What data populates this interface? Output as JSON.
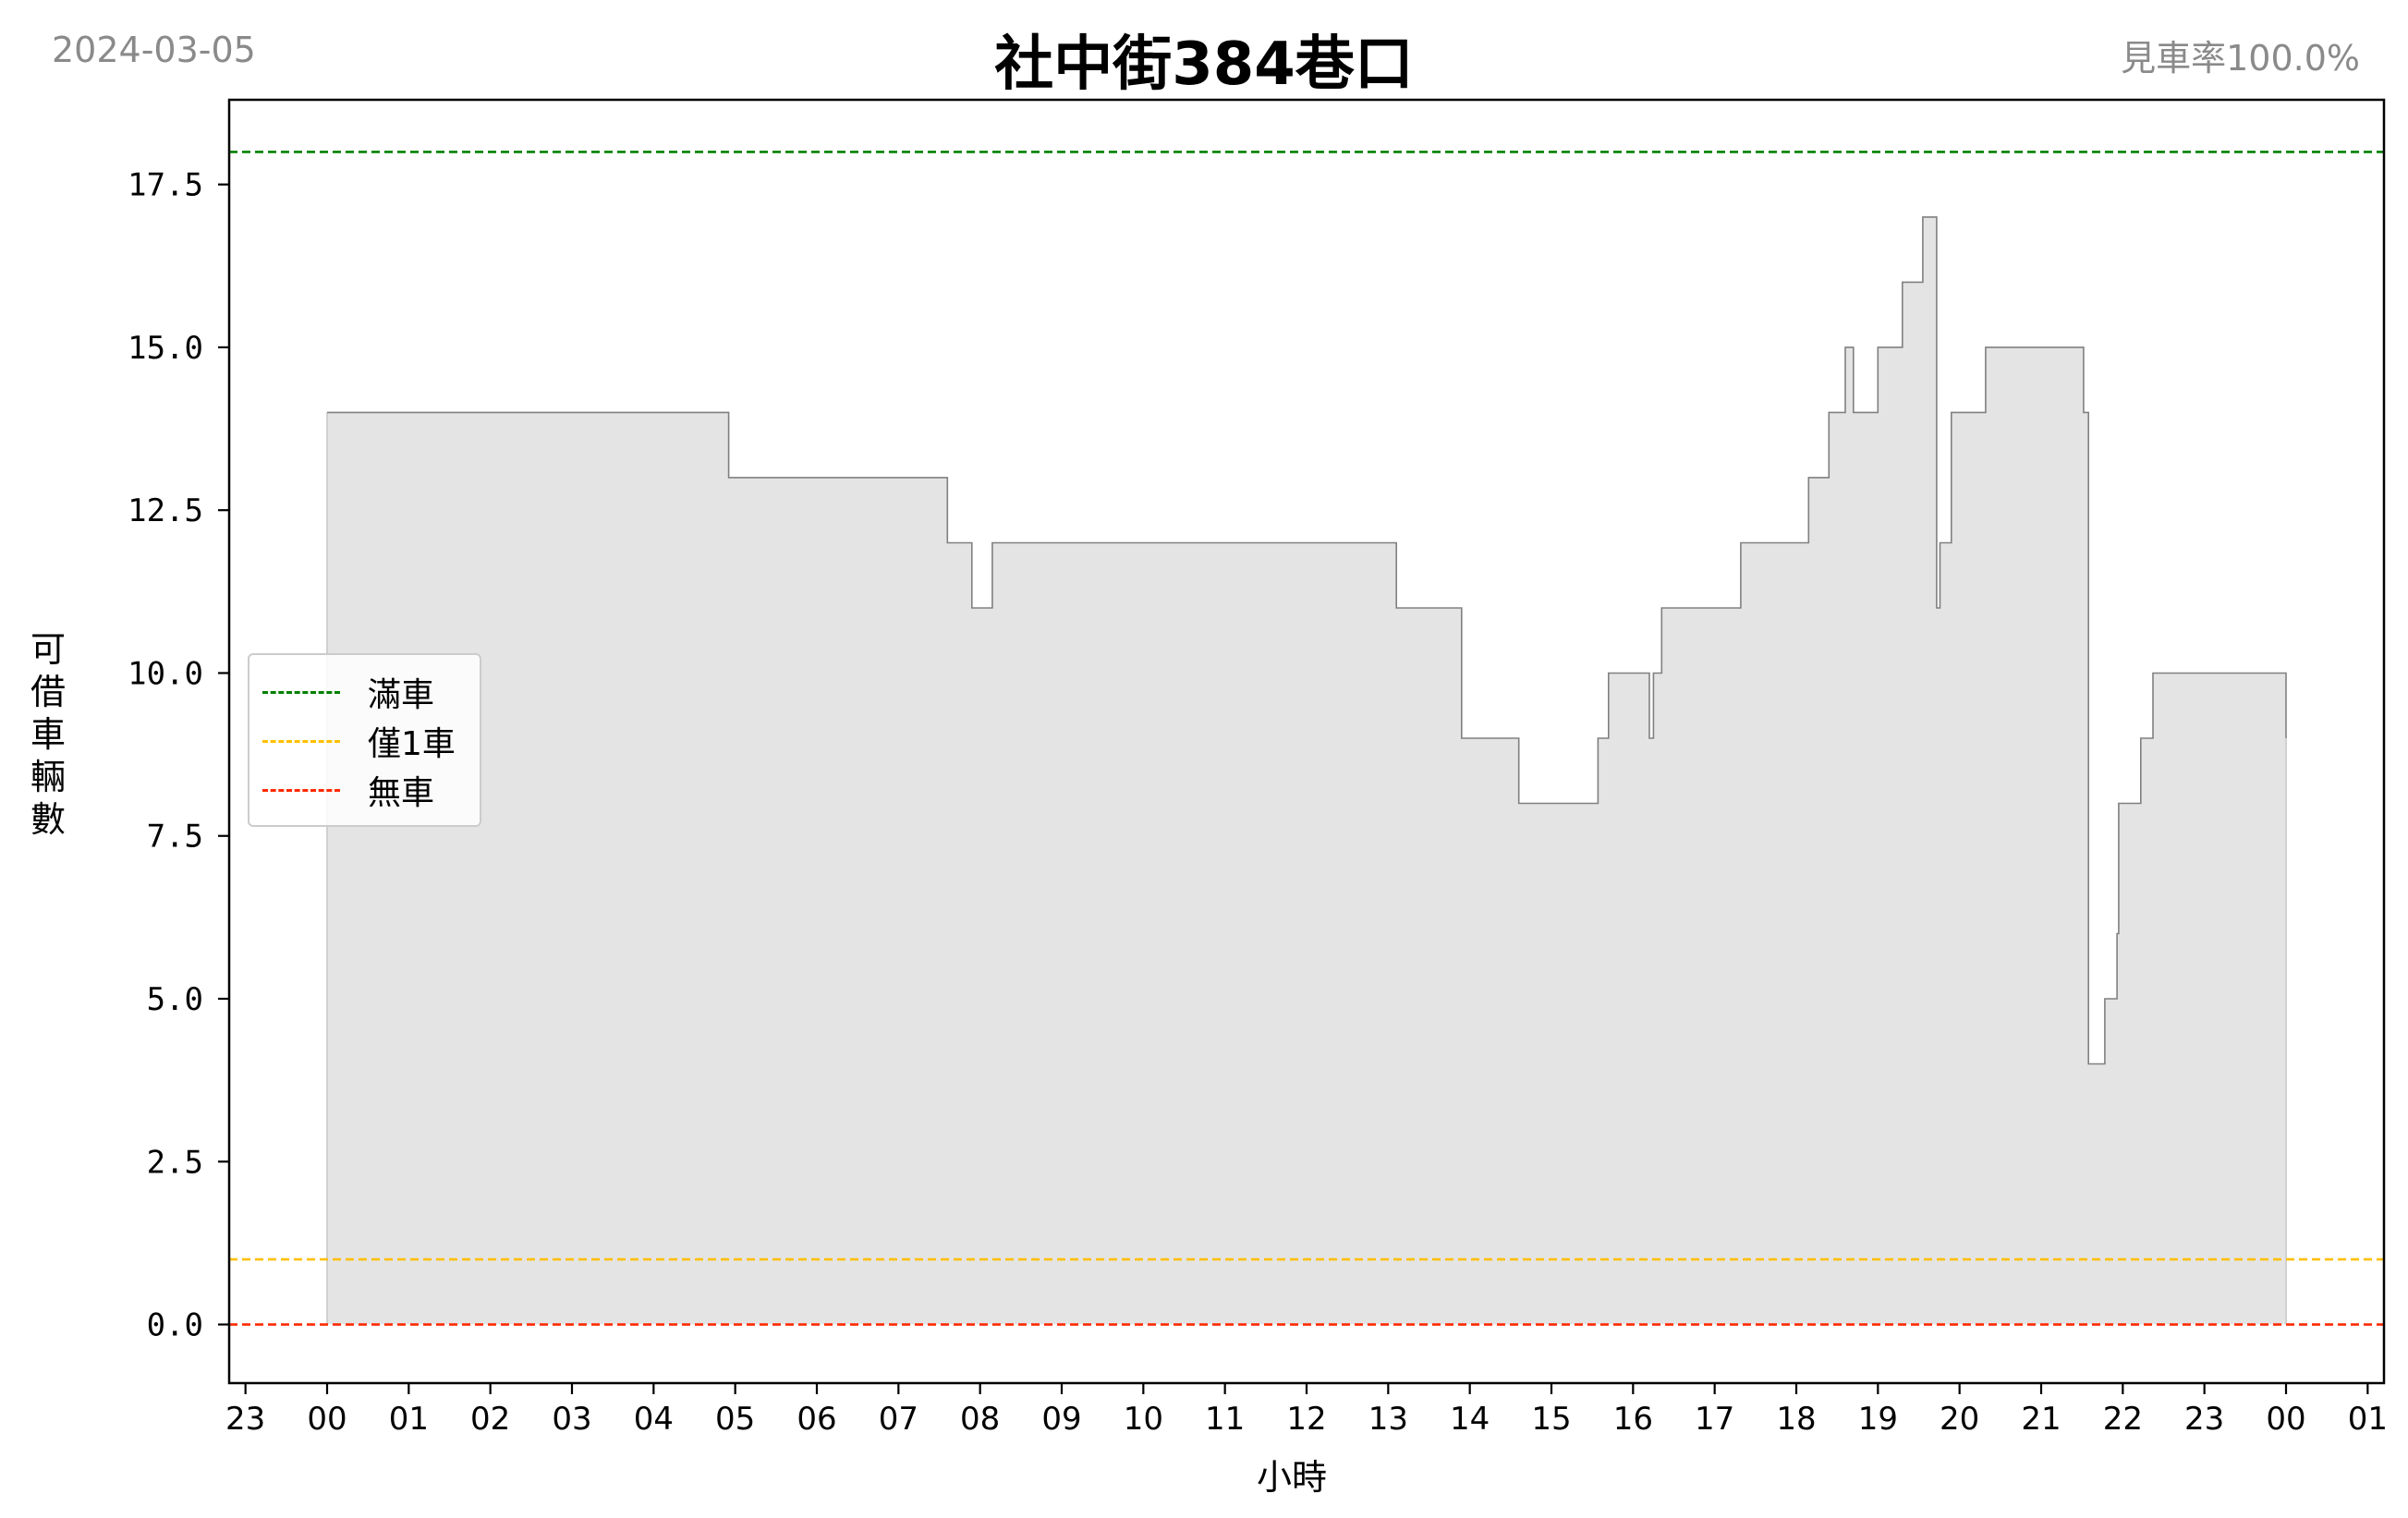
{
  "header": {
    "date": "2024-03-05",
    "title": "社中街384巷口",
    "rate": "見車率100.0%"
  },
  "chart_data": {
    "type": "area",
    "title": "社中街384巷口",
    "xlabel": "小時",
    "ylabel": "可借車輛數",
    "x_ticks": [
      "23",
      "00",
      "01",
      "02",
      "03",
      "04",
      "05",
      "06",
      "07",
      "08",
      "09",
      "10",
      "11",
      "12",
      "13",
      "14",
      "15",
      "16",
      "17",
      "18",
      "19",
      "20",
      "21",
      "22",
      "23",
      "00",
      "01"
    ],
    "y_ticks": [
      "0.0",
      "2.5",
      "5.0",
      "7.5",
      "10.0",
      "12.5",
      "15.0",
      "17.5"
    ],
    "xlim_hours": [
      -1.2,
      25.2
    ],
    "ylim": [
      -0.9,
      18.8
    ],
    "series": [
      {
        "step": "post",
        "line_color": "#808080",
        "fill_color": "#e4e4e4",
        "x_hours": [
          0,
          4.92,
          7.6,
          7.9,
          8.15,
          13.1,
          13.9,
          14.6,
          15.57,
          15.7,
          16.2,
          16.25,
          16.35,
          17.32,
          18.15,
          18.4,
          18.6,
          18.7,
          19.0,
          19.3,
          19.55,
          19.72,
          19.76,
          19.9,
          20.32,
          21.52,
          21.58,
          21.78,
          21.93,
          21.95,
          22.22,
          22.37,
          24.0
        ],
        "y_values": [
          14,
          13,
          12,
          11,
          12,
          11,
          9,
          8,
          9,
          10,
          9,
          10,
          11,
          12,
          13,
          14,
          15,
          14,
          15,
          16,
          17,
          11,
          12,
          14,
          15,
          14,
          4,
          5,
          6,
          8,
          9,
          10,
          9
        ]
      }
    ],
    "hlines": [
      {
        "name": "滿車",
        "y": 18,
        "color": "#008000"
      },
      {
        "name": "僅1車",
        "y": 1,
        "color": "#ffbf00"
      },
      {
        "name": "無車",
        "y": 0,
        "color": "#ff2a00"
      }
    ],
    "legend": {
      "placement": "center-left"
    },
    "grid": false
  }
}
